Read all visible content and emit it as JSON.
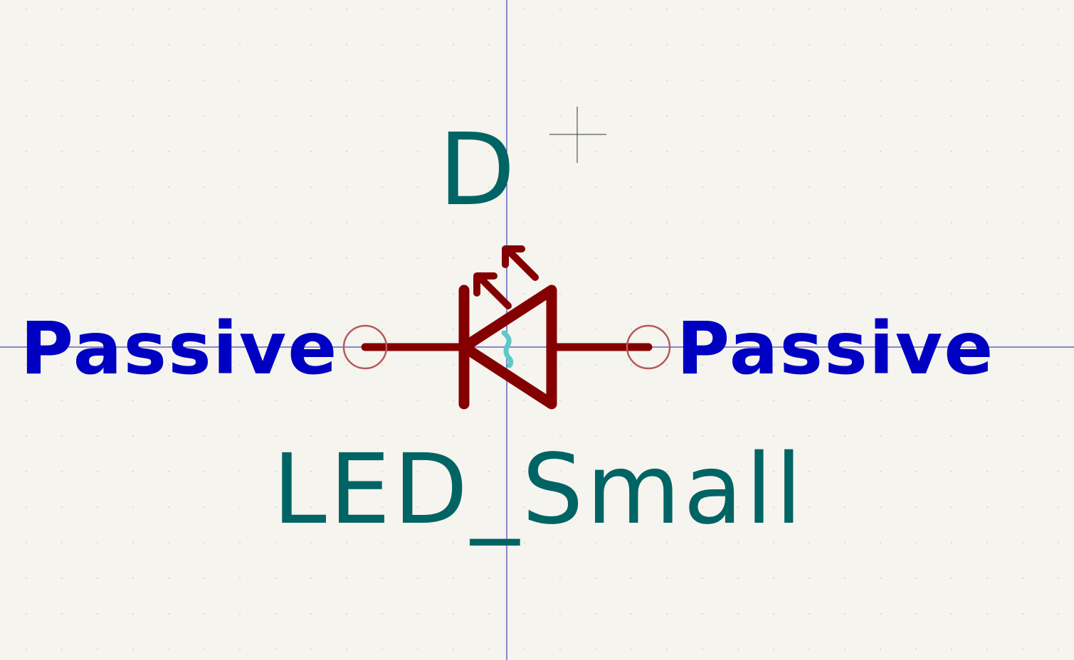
{
  "symbol": {
    "reference": "D",
    "value": "LED_Small",
    "pins": [
      {
        "side": "left",
        "electrical_type": "Passive"
      },
      {
        "side": "right",
        "electrical_type": "Passive"
      }
    ]
  },
  "colors": {
    "background": "#f5f4ef",
    "grid_dot": "#d9d8d2",
    "axis": "#1a1aa8",
    "body": "#840000",
    "pin_circle": "#b55a5a",
    "field_text": "#006464",
    "pin_type_text": "#0000c2",
    "highlight": "#5fc9c6",
    "cursor": "#333333"
  }
}
